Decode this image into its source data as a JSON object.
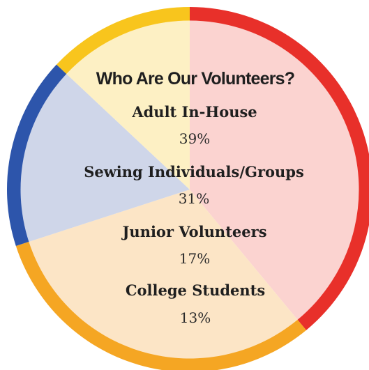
{
  "chart_data": {
    "type": "pie",
    "title": "Who Are Our Volunteers?",
    "slices": [
      {
        "label": "Adult In-House",
        "value": 39,
        "value_label": "39%",
        "fill": "#fbd3d0",
        "rim": "#e8302a"
      },
      {
        "label": "Sewing Individuals/Groups",
        "value": 31,
        "value_label": "31%",
        "fill": "#fce5c6",
        "rim": "#f5a623"
      },
      {
        "label": "Junior Volunteers",
        "value": 17,
        "value_label": "17%",
        "fill": "#cfd6e9",
        "rim": "#2d55ab"
      },
      {
        "label": "College Students",
        "value": 13,
        "value_label": "13%",
        "fill": "#fdf0c4",
        "rim": "#f8c51d"
      }
    ],
    "legend": "none"
  }
}
